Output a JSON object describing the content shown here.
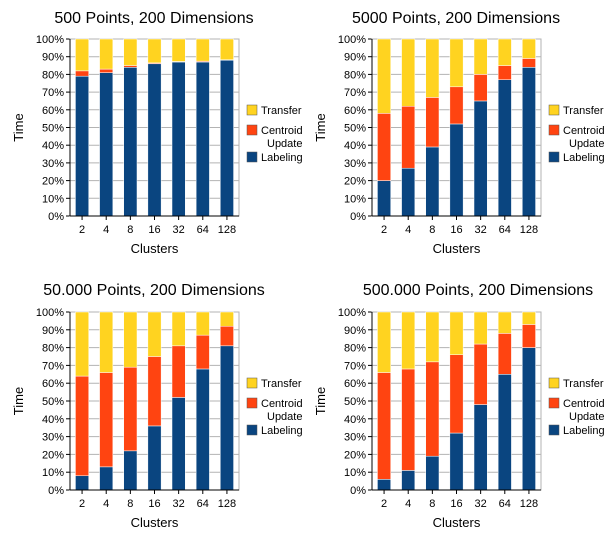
{
  "colors": {
    "labeling": "#0a4580",
    "centroid": "#ff4411",
    "transfer": "#ffd320",
    "grid": "#b3b3b3",
    "axis": "#000000"
  },
  "chart_data": [
    {
      "type": "bar",
      "stacked": true,
      "title": "500 Points, 200 Dimensions",
      "xlabel": "Clusters",
      "ylabel": "Time",
      "ylim": [
        0,
        100
      ],
      "y_ticks": [
        "0%",
        "10%",
        "20%",
        "30%",
        "40%",
        "50%",
        "60%",
        "70%",
        "80%",
        "90%",
        "100%"
      ],
      "categories": [
        "2",
        "4",
        "8",
        "16",
        "32",
        "64",
        "128"
      ],
      "legend_position": "right",
      "series": [
        {
          "name": "Labeling",
          "values": [
            79,
            81,
            84,
            86,
            87,
            87,
            88
          ]
        },
        {
          "name": "Centroid Update",
          "values": [
            3,
            2,
            1,
            0.5,
            0.3,
            0.5,
            0.3
          ]
        },
        {
          "name": "Transfer",
          "values": [
            18,
            17,
            15,
            13.5,
            12.7,
            12.5,
            11.7
          ]
        }
      ]
    },
    {
      "type": "bar",
      "stacked": true,
      "title": "5000 Points, 200 Dimensions",
      "xlabel": "Clusters",
      "ylabel": "Time",
      "ylim": [
        0,
        100
      ],
      "y_ticks": [
        "0%",
        "10%",
        "20%",
        "30%",
        "40%",
        "50%",
        "60%",
        "70%",
        "80%",
        "90%",
        "100%"
      ],
      "categories": [
        "2",
        "4",
        "8",
        "16",
        "32",
        "64",
        "128"
      ],
      "legend_position": "right",
      "series": [
        {
          "name": "Labeling",
          "values": [
            20,
            27,
            39,
            52,
            65,
            77,
            84
          ]
        },
        {
          "name": "Centroid Update",
          "values": [
            38,
            35,
            28,
            21,
            15,
            8,
            5
          ]
        },
        {
          "name": "Transfer",
          "values": [
            42,
            38,
            33,
            27,
            20,
            15,
            11
          ]
        }
      ]
    },
    {
      "type": "bar",
      "stacked": true,
      "title": "50.000 Points, 200 Dimensions",
      "xlabel": "Clusters",
      "ylabel": "Time",
      "ylim": [
        0,
        100
      ],
      "y_ticks": [
        "0%",
        "10%",
        "20%",
        "30%",
        "40%",
        "50%",
        "60%",
        "70%",
        "80%",
        "90%",
        "100%"
      ],
      "categories": [
        "2",
        "4",
        "8",
        "16",
        "32",
        "64",
        "128"
      ],
      "legend_position": "right",
      "series": [
        {
          "name": "Labeling",
          "values": [
            8,
            13,
            22,
            36,
            52,
            68,
            81
          ]
        },
        {
          "name": "Centroid Update",
          "values": [
            56,
            53,
            47,
            39,
            29,
            19,
            11
          ]
        },
        {
          "name": "Transfer",
          "values": [
            36,
            34,
            31,
            25,
            19,
            13,
            8
          ]
        }
      ]
    },
    {
      "type": "bar",
      "stacked": true,
      "title": "500.000 Points, 200 Dimensions",
      "xlabel": "Clusters",
      "ylabel": "Time",
      "ylim": [
        0,
        100
      ],
      "y_ticks": [
        "0%",
        "10%",
        "20%",
        "30%",
        "40%",
        "50%",
        "60%",
        "70%",
        "80%",
        "90%",
        "100%"
      ],
      "categories": [
        "2",
        "4",
        "8",
        "16",
        "32",
        "64",
        "128"
      ],
      "legend_position": "right",
      "series": [
        {
          "name": "Labeling",
          "values": [
            6,
            11,
            19,
            32,
            48,
            65,
            80
          ]
        },
        {
          "name": "Centroid Update",
          "values": [
            60,
            57,
            53,
            44,
            34,
            23,
            13
          ]
        },
        {
          "name": "Transfer",
          "values": [
            34,
            32,
            28,
            24,
            18,
            12,
            7
          ]
        }
      ]
    }
  ]
}
